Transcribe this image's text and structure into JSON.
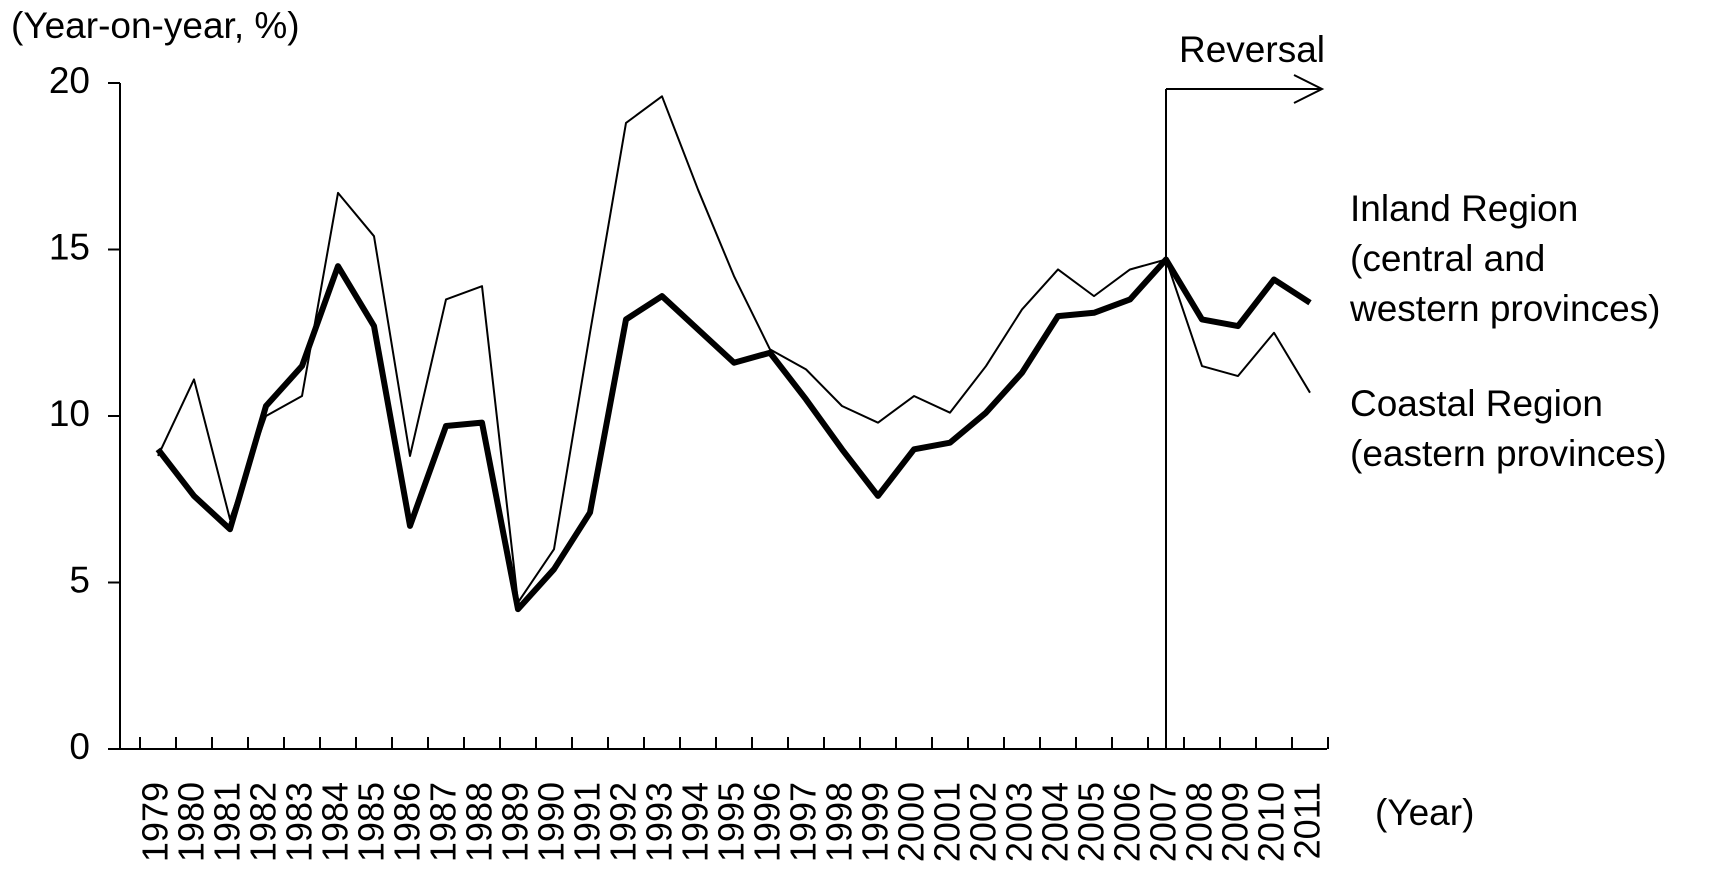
{
  "chart_data": {
    "type": "line",
    "y_label": "(Year-on-year, %)",
    "x_label": "(Year)",
    "categories": [
      "1979",
      "1980",
      "1981",
      "1982",
      "1983",
      "1984",
      "1985",
      "1986",
      "1987",
      "1988",
      "1989",
      "1990",
      "1991",
      "1992",
      "1993",
      "1994",
      "1995",
      "1996",
      "1997",
      "1998",
      "1999",
      "2000",
      "2001",
      "2002",
      "2003",
      "2004",
      "2005",
      "2006",
      "2007",
      "2008",
      "2009",
      "2010",
      "2011"
    ],
    "series": [
      {
        "name": "Inland Region\n(central and\nwestern provinces)",
        "color": "#000000",
        "width": 6,
        "values": [
          9.0,
          7.6,
          6.6,
          10.3,
          11.5,
          14.5,
          12.7,
          6.7,
          9.7,
          9.8,
          4.2,
          5.4,
          7.1,
          12.9,
          13.6,
          12.6,
          11.6,
          11.9,
          10.5,
          9.0,
          7.6,
          9.0,
          9.2,
          10.1,
          11.3,
          13.0,
          13.1,
          13.5,
          14.7,
          12.9,
          12.7,
          14.1,
          13.4
        ]
      },
      {
        "name": "Coastal Region\n(eastern provinces)",
        "color": "#000000",
        "width": 2,
        "values": [
          8.8,
          11.1,
          6.9,
          10.0,
          10.6,
          16.7,
          15.4,
          8.8,
          13.5,
          13.9,
          4.4,
          6.0,
          12.5,
          18.8,
          19.6,
          16.8,
          14.2,
          12.0,
          11.4,
          10.3,
          9.8,
          10.6,
          10.1,
          11.5,
          13.2,
          14.4,
          13.6,
          14.4,
          14.7,
          11.5,
          11.2,
          12.5,
          10.7
        ]
      }
    ],
    "annotation": {
      "text": "Reversal",
      "category": "2007"
    },
    "ylim": [
      0,
      20
    ],
    "yticks": [
      0,
      5,
      10,
      15,
      20
    ]
  }
}
